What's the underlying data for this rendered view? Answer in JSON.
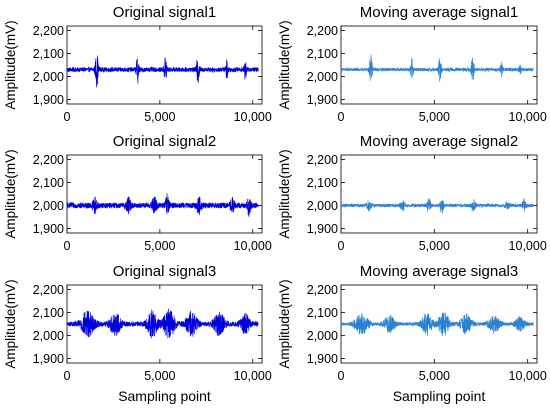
{
  "chart_data": [
    {
      "type": "line",
      "title": "Original signal1",
      "ylabel": "Amplitude(mV)",
      "xlabel": "",
      "xlim": [
        0,
        10500
      ],
      "ylim": [
        1880,
        2220
      ],
      "xticks": [
        0,
        5000,
        10000
      ],
      "xtick_labels": [
        "0",
        "5,000",
        "10,000"
      ],
      "yticks": [
        1900,
        2000,
        2100,
        2200
      ],
      "ytick_labels": [
        "1,900",
        "2,000",
        "2,100",
        "2,200"
      ],
      "color": "#0000dd",
      "series": [
        {
          "baseline": 2030,
          "noise": 10,
          "bursts": [
            [
              1600,
              70,
              80
            ],
            [
              3800,
              55,
              70
            ],
            [
              5300,
              60,
              75
            ],
            [
              7050,
              60,
              75
            ],
            [
              8600,
              40,
              60
            ],
            [
              9600,
              40,
              60
            ]
          ]
        }
      ]
    },
    {
      "type": "line",
      "title": "Moving average signal1",
      "ylabel": "Amplitude(mV)",
      "xlabel": "",
      "xlim": [
        0,
        10500
      ],
      "ylim": [
        1880,
        2220
      ],
      "xticks": [
        0,
        5000,
        10000
      ],
      "xtick_labels": [
        "0",
        "5,000",
        "10,000"
      ],
      "yticks": [
        1900,
        2000,
        2100,
        2200
      ],
      "ytick_labels": [
        "1,900",
        "2,000",
        "2,100",
        "2,200"
      ],
      "color": "#2b82d4",
      "series": [
        {
          "baseline": 2030,
          "noise": 7,
          "bursts": [
            [
              1600,
              60,
              80
            ],
            [
              3800,
              45,
              70
            ],
            [
              5300,
              50,
              75
            ],
            [
              7050,
              50,
              75
            ],
            [
              8600,
              30,
              60
            ],
            [
              9600,
              30,
              60
            ]
          ]
        }
      ]
    },
    {
      "type": "line",
      "title": "Original signal2",
      "ylabel": "Amplitude(mV)",
      "xlabel": "",
      "xlim": [
        0,
        10500
      ],
      "ylim": [
        1880,
        2220
      ],
      "xticks": [
        0,
        5000,
        10000
      ],
      "xtick_labels": [
        "0",
        "5,000",
        "10,000"
      ],
      "yticks": [
        1900,
        2000,
        2100,
        2200
      ],
      "ytick_labels": [
        "1,900",
        "2,000",
        "2,100",
        "2,200"
      ],
      "color": "#0000dd",
      "series": [
        {
          "baseline": 2000,
          "noise": 12,
          "bursts": [
            [
              1500,
              30,
              120
            ],
            [
              3300,
              30,
              120
            ],
            [
              4700,
              35,
              120
            ],
            [
              5400,
              50,
              90
            ],
            [
              7100,
              35,
              120
            ],
            [
              8900,
              25,
              120
            ],
            [
              9800,
              40,
              90
            ]
          ]
        }
      ]
    },
    {
      "type": "line",
      "title": "Moving average signal2",
      "ylabel": "Amplitude(mV)",
      "xlabel": "",
      "xlim": [
        0,
        10500
      ],
      "ylim": [
        1880,
        2220
      ],
      "xticks": [
        0,
        5000,
        10000
      ],
      "xtick_labels": [
        "0",
        "5,000",
        "10,000"
      ],
      "yticks": [
        1900,
        2000,
        2100,
        2200
      ],
      "ytick_labels": [
        "1,900",
        "2,000",
        "2,100",
        "2,200"
      ],
      "color": "#2b82d4",
      "series": [
        {
          "baseline": 2000,
          "noise": 7,
          "bursts": [
            [
              1500,
              20,
              120
            ],
            [
              3300,
              20,
              120
            ],
            [
              4700,
              25,
              120
            ],
            [
              5400,
              30,
              90
            ],
            [
              7100,
              25,
              120
            ],
            [
              8900,
              15,
              120
            ],
            [
              9800,
              25,
              90
            ]
          ]
        }
      ]
    },
    {
      "type": "line",
      "title": "Original signal3",
      "ylabel": "Amplitude(mV)",
      "xlabel": "Sampling point",
      "xlim": [
        0,
        10500
      ],
      "ylim": [
        1880,
        2220
      ],
      "xticks": [
        0,
        5000,
        10000
      ],
      "xtick_labels": [
        "0",
        "5,000",
        "10,000"
      ],
      "yticks": [
        1900,
        2000,
        2100,
        2200
      ],
      "ytick_labels": [
        "1,900",
        "2,000",
        "2,100",
        "2,200"
      ],
      "color": "#0000dd",
      "series": [
        {
          "baseline": 2050,
          "noise": 10,
          "bursts": [
            [
              1100,
              55,
              350
            ],
            [
              2600,
              45,
              300
            ],
            [
              4600,
              55,
              280
            ],
            [
              5500,
              60,
              300
            ],
            [
              6700,
              50,
              300
            ],
            [
              8200,
              45,
              300
            ],
            [
              9600,
              40,
              250
            ]
          ]
        }
      ]
    },
    {
      "type": "line",
      "title": "Moving average signal3",
      "ylabel": "Amplitude(mV)",
      "xlabel": "Sampling point",
      "xlim": [
        0,
        10500
      ],
      "ylim": [
        1880,
        2220
      ],
      "xticks": [
        0,
        5000,
        10000
      ],
      "xtick_labels": [
        "0",
        "5,000",
        "10,000"
      ],
      "yticks": [
        1900,
        2000,
        2100,
        2200
      ],
      "ytick_labels": [
        "1,900",
        "2,000",
        "2,100",
        "2,200"
      ],
      "color": "#2b82d4",
      "series": [
        {
          "baseline": 2050,
          "noise": 7,
          "bursts": [
            [
              1100,
              45,
              350
            ],
            [
              2600,
              35,
              300
            ],
            [
              4600,
              45,
              280
            ],
            [
              5500,
              50,
              300
            ],
            [
              6700,
              40,
              300
            ],
            [
              8200,
              35,
              300
            ],
            [
              9600,
              30,
              250
            ]
          ]
        }
      ]
    }
  ]
}
